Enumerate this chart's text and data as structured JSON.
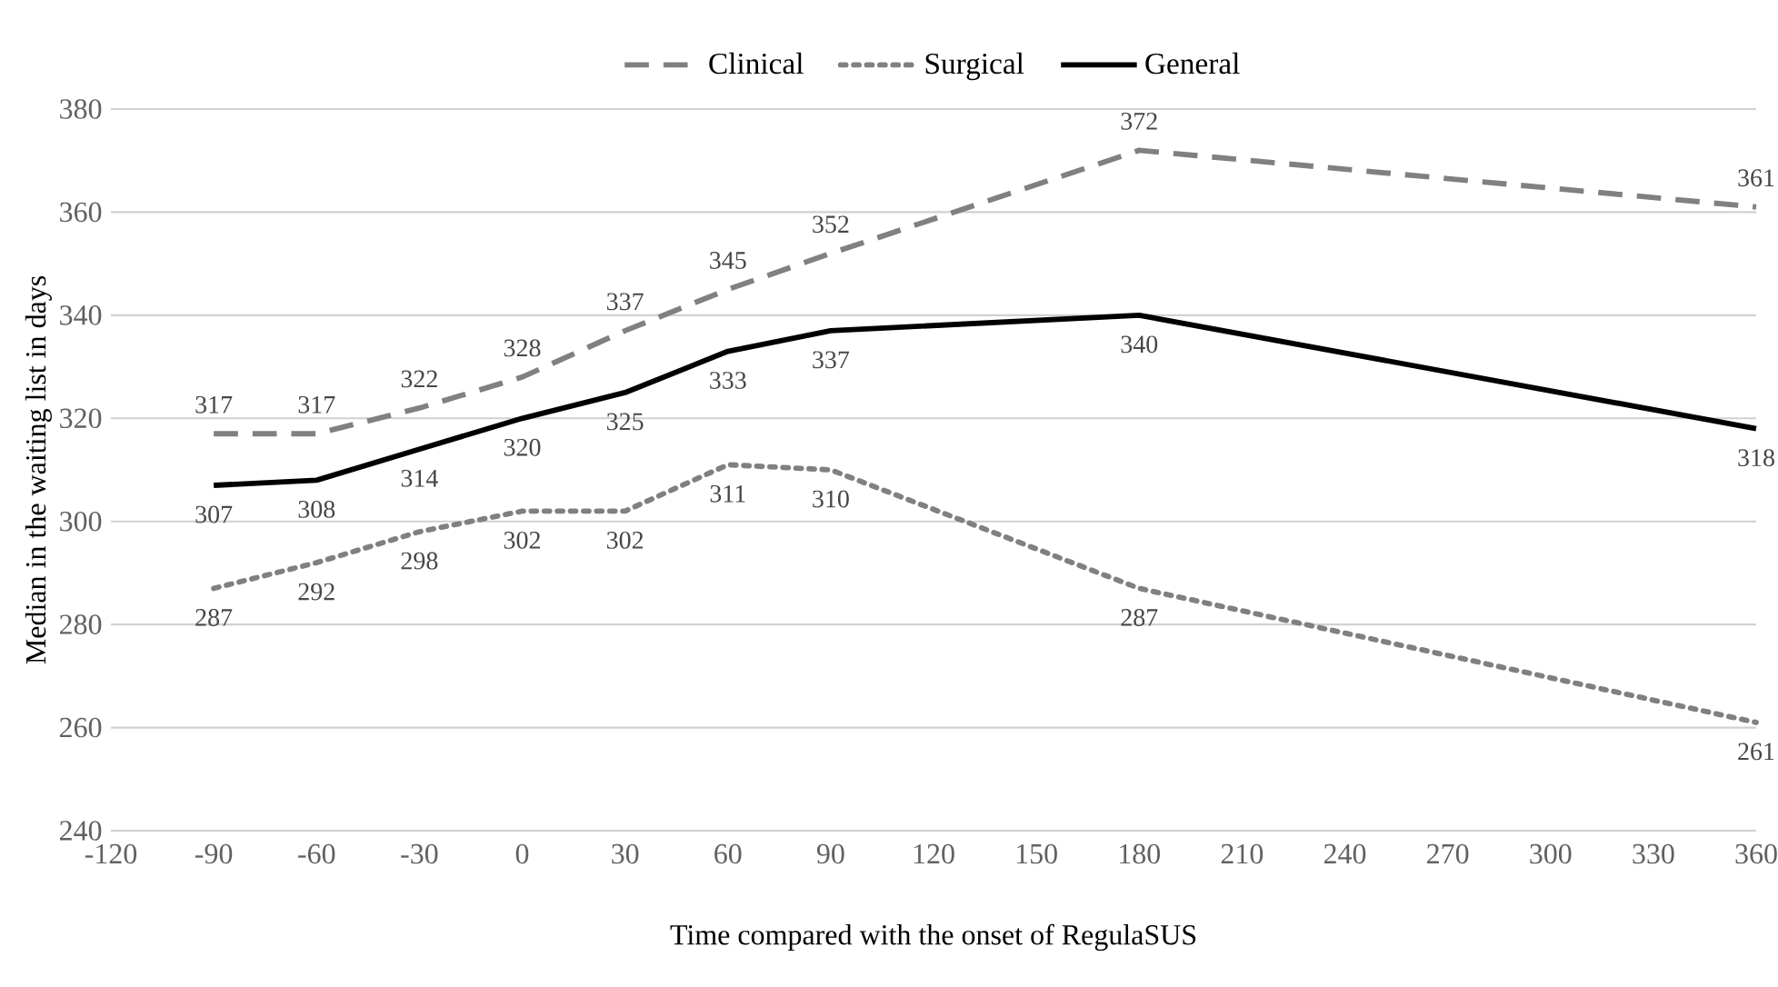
{
  "chart_data": {
    "type": "line",
    "xlabel": "Time compared with the onset of RegulaSUS",
    "ylabel": "Median in the waiting list in days",
    "x": [
      -90,
      -60,
      -30,
      0,
      30,
      60,
      90,
      180,
      360
    ],
    "series": [
      {
        "name": "Clinical",
        "color": "#808080",
        "line_style": "dashed",
        "values": [
          317,
          317,
          322,
          328,
          337,
          345,
          352,
          372,
          361
        ]
      },
      {
        "name": "Surgical",
        "color": "#808080",
        "line_style": "dotted",
        "values": [
          287,
          292,
          298,
          302,
          302,
          311,
          310,
          287,
          261
        ]
      },
      {
        "name": "General",
        "color": "#000000",
        "line_style": "solid",
        "values": [
          307,
          308,
          314,
          320,
          325,
          333,
          337,
          340,
          318
        ]
      }
    ],
    "xlim": [
      -120,
      360
    ],
    "xticks": [
      -120,
      -90,
      -60,
      -30,
      0,
      30,
      60,
      90,
      120,
      150,
      180,
      210,
      240,
      270,
      300,
      330,
      360
    ],
    "ylim": [
      240,
      380
    ],
    "yticks": [
      240,
      260,
      280,
      300,
      320,
      340,
      360,
      380
    ],
    "grid": "y",
    "legend": "top",
    "data_labels": true,
    "marker": "none"
  }
}
